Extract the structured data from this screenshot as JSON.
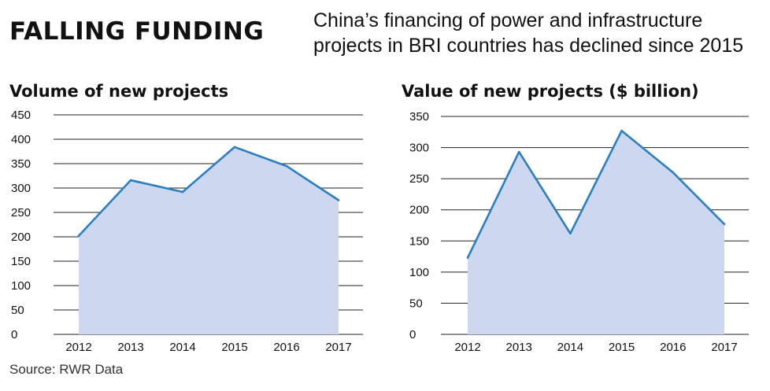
{
  "header": {
    "title": "FALLING FUNDING",
    "subtitle": "China’s financing of power and infrastructure projects in BRI countries has declined since 2015"
  },
  "source": "Source: RWR Data",
  "colors": {
    "fill": "#cdd8f0",
    "line": "#2a7fc4",
    "grid": "#222222"
  },
  "chart_data": [
    {
      "type": "area",
      "title": "Volume of new projects",
      "categories": [
        "2012",
        "2013",
        "2014",
        "2015",
        "2016",
        "2017"
      ],
      "values": [
        202,
        316,
        292,
        384,
        345,
        275
      ],
      "ylim": [
        0,
        450
      ],
      "yticks": [
        0,
        50,
        100,
        150,
        200,
        250,
        300,
        350,
        400,
        450
      ],
      "grid": true
    },
    {
      "type": "area",
      "title": "Value of new projects ($ billion)",
      "categories": [
        "2012",
        "2013",
        "2014",
        "2015",
        "2016",
        "2017"
      ],
      "values": [
        123,
        293,
        162,
        327,
        260,
        177
      ],
      "ylim": [
        0,
        350
      ],
      "yticks": [
        0,
        50,
        100,
        150,
        200,
        250,
        300,
        350
      ],
      "grid": true
    }
  ]
}
